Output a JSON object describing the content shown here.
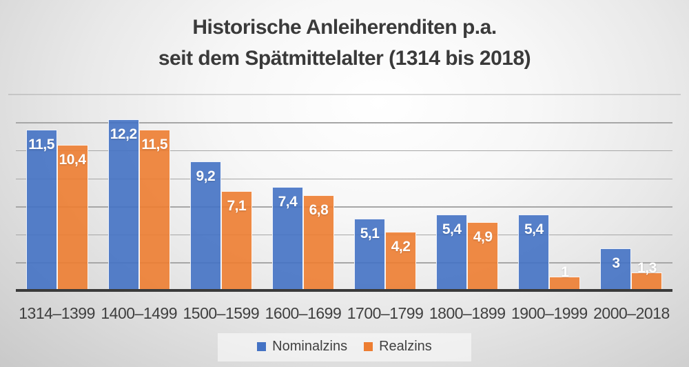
{
  "title": {
    "line1": "Historische Anleiherenditen p.a.",
    "line2": "seit dem Spätmittelalter (1314 bis 2018)"
  },
  "colors": {
    "nominal_blue": "#4472C4",
    "real_orange": "#ED7D31",
    "axis_line": "#3a3a3a",
    "gridline": "#a6a6a6",
    "title_text": "#3a3a3a",
    "bar_value_text": "#ffffff"
  },
  "chart_data": {
    "type": "bar",
    "categories": [
      "1314–1399",
      "1400–1499",
      "1500–1599",
      "1600–1699",
      "1700–1799",
      "1800–1899",
      "1900–1999",
      "2000–2018"
    ],
    "series": [
      {
        "name": "Nominalzins",
        "color": "#4472C4",
        "values": [
          11.5,
          12.2,
          9.2,
          7.4,
          5.1,
          5.4,
          5.4,
          3
        ],
        "labels": [
          "11,5",
          "12,2",
          "9,2",
          "7,4",
          "5,1",
          "5,4",
          "5,4",
          "3"
        ]
      },
      {
        "name": "Realzins",
        "color": "#ED7D31",
        "values": [
          10.4,
          11.5,
          7.1,
          6.8,
          4.2,
          4.9,
          1,
          1.3
        ],
        "labels": [
          "10,4",
          "11,5",
          "7,1",
          "6,8",
          "4,2",
          "4,9",
          "1",
          "1,3"
        ]
      }
    ],
    "title": "Historische Anleiherenditen p.a. seit dem Spätmittelalter (1314 bis 2018)",
    "xlabel": "",
    "ylabel": "",
    "ylim": [
      0,
      12
    ],
    "grid_step": 2,
    "grid": true,
    "y_tick_labels_visible": false,
    "legend_position": "bottom"
  }
}
